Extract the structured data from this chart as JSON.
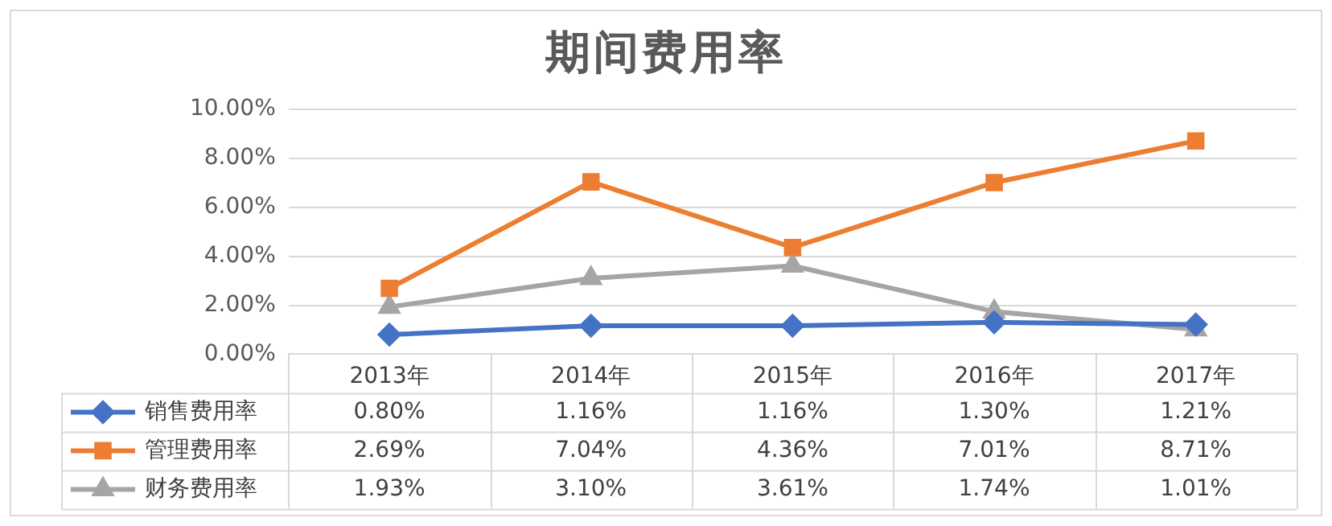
{
  "chart_data": {
    "type": "line",
    "title": "期间费用率",
    "categories": [
      "2013年",
      "2014年",
      "2015年",
      "2016年",
      "2017年"
    ],
    "series": [
      {
        "name": "销售费用率",
        "color": "#4472c4",
        "marker": "diamond",
        "values": [
          0.8,
          1.16,
          1.16,
          1.3,
          1.21
        ],
        "value_labels": [
          "0.80%",
          "1.16%",
          "1.16%",
          "1.30%",
          "1.21%"
        ]
      },
      {
        "name": "管理费用率",
        "color": "#ed7d31",
        "marker": "square",
        "values": [
          2.69,
          7.04,
          4.36,
          7.01,
          8.71
        ],
        "value_labels": [
          "2.69%",
          "7.04%",
          "4.36%",
          "7.01%",
          "8.71%"
        ]
      },
      {
        "name": "财务费用率",
        "color": "#a5a5a5",
        "marker": "triangle",
        "values": [
          1.93,
          3.1,
          3.61,
          1.74,
          1.01
        ],
        "value_labels": [
          "1.93%",
          "3.10%",
          "3.61%",
          "1.74%",
          "1.01%"
        ]
      }
    ],
    "ylim": [
      0,
      10
    ],
    "yticks": [
      {
        "value": 0,
        "label": "0.00%"
      },
      {
        "value": 2,
        "label": "2.00%"
      },
      {
        "value": 4,
        "label": "4.00%"
      },
      {
        "value": 6,
        "label": "6.00%"
      },
      {
        "value": 8,
        "label": "8.00%"
      },
      {
        "value": 10,
        "label": "10.00%"
      }
    ],
    "grid": "y",
    "legend": "bottom left",
    "line_style": "solid"
  }
}
